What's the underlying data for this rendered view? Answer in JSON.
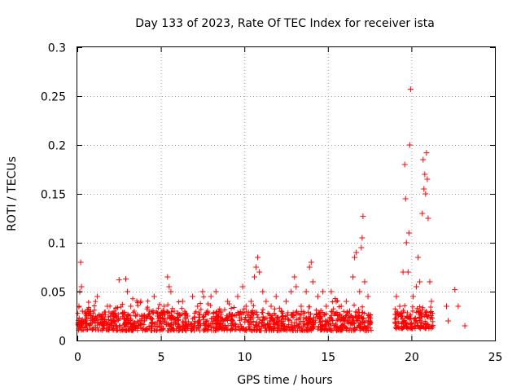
{
  "chart_data": {
    "type": "scatter",
    "title": "Day 133 of 2023, Rate Of TEC Index for receiver ista",
    "xlabel": "GPS time / hours",
    "ylabel": "ROTI / TECUs",
    "xlim": [
      0,
      25
    ],
    "ylim": [
      0,
      0.3
    ],
    "xticks": [
      0,
      5,
      10,
      15,
      20,
      25
    ],
    "yticks": [
      0,
      0.05,
      0.1,
      0.15,
      0.2,
      0.25,
      0.3
    ],
    "xtick_labels": [
      "0",
      "5",
      "10",
      "15",
      "20",
      "25"
    ],
    "ytick_labels": [
      "0",
      "0.05",
      "0.1",
      "0.15",
      "0.2",
      "0.25",
      "0.3"
    ],
    "grid": true,
    "marker": "+",
    "color": "#ff0000",
    "series": [
      {
        "name": "ROTI",
        "points": [
          [
            0.05,
            0.018
          ],
          [
            0.1,
            0.035
          ],
          [
            0.15,
            0.05
          ],
          [
            0.2,
            0.08
          ],
          [
            0.25,
            0.055
          ],
          [
            0.3,
            0.03
          ],
          [
            0.5,
            0.022
          ],
          [
            0.8,
            0.03
          ],
          [
            1.0,
            0.02
          ],
          [
            1.2,
            0.045
          ],
          [
            1.5,
            0.025
          ],
          [
            1.8,
            0.035
          ],
          [
            2.0,
            0.02
          ],
          [
            2.2,
            0.03
          ],
          [
            2.5,
            0.062
          ],
          [
            2.7,
            0.028
          ],
          [
            2.9,
            0.063
          ],
          [
            3.0,
            0.05
          ],
          [
            3.2,
            0.035
          ],
          [
            3.5,
            0.025
          ],
          [
            3.8,
            0.04
          ],
          [
            4.0,
            0.02
          ],
          [
            4.3,
            0.03
          ],
          [
            4.6,
            0.045
          ],
          [
            4.8,
            0.025
          ],
          [
            5.0,
            0.022
          ],
          [
            5.2,
            0.035
          ],
          [
            5.4,
            0.065
          ],
          [
            5.5,
            0.055
          ],
          [
            5.6,
            0.05
          ],
          [
            5.8,
            0.03
          ],
          [
            6.0,
            0.028
          ],
          [
            6.3,
            0.04
          ],
          [
            6.6,
            0.025
          ],
          [
            6.9,
            0.045
          ],
          [
            7.2,
            0.035
          ],
          [
            7.5,
            0.05
          ],
          [
            7.8,
            0.03
          ],
          [
            8.0,
            0.045
          ],
          [
            8.3,
            0.05
          ],
          [
            8.6,
            0.03
          ],
          [
            9.0,
            0.04
          ],
          [
            9.3,
            0.025
          ],
          [
            9.6,
            0.045
          ],
          [
            9.9,
            0.055
          ],
          [
            10.1,
            0.035
          ],
          [
            10.4,
            0.04
          ],
          [
            10.6,
            0.065
          ],
          [
            10.7,
            0.075
          ],
          [
            10.8,
            0.085
          ],
          [
            10.9,
            0.07
          ],
          [
            11.1,
            0.05
          ],
          [
            11.3,
            0.04
          ],
          [
            11.6,
            0.035
          ],
          [
            11.9,
            0.045
          ],
          [
            12.2,
            0.03
          ],
          [
            12.5,
            0.04
          ],
          [
            12.8,
            0.05
          ],
          [
            13.0,
            0.065
          ],
          [
            13.1,
            0.055
          ],
          [
            13.4,
            0.035
          ],
          [
            13.7,
            0.05
          ],
          [
            13.9,
            0.075
          ],
          [
            14.0,
            0.08
          ],
          [
            14.1,
            0.06
          ],
          [
            14.4,
            0.045
          ],
          [
            14.7,
            0.05
          ],
          [
            14.9,
            0.035
          ],
          [
            15.2,
            0.05
          ],
          [
            15.5,
            0.04
          ],
          [
            15.8,
            0.035
          ],
          [
            16.1,
            0.04
          ],
          [
            16.3,
            0.03
          ],
          [
            16.5,
            0.065
          ],
          [
            16.6,
            0.085
          ],
          [
            16.7,
            0.09
          ],
          [
            16.9,
            0.05
          ],
          [
            17.0,
            0.095
          ],
          [
            17.05,
            0.105
          ],
          [
            17.1,
            0.127
          ],
          [
            17.2,
            0.06
          ],
          [
            17.4,
            0.045
          ],
          [
            19.1,
            0.045
          ],
          [
            19.3,
            0.035
          ],
          [
            19.5,
            0.07
          ],
          [
            19.6,
            0.18
          ],
          [
            19.65,
            0.145
          ],
          [
            19.7,
            0.1
          ],
          [
            19.8,
            0.07
          ],
          [
            19.85,
            0.11
          ],
          [
            19.9,
            0.2
          ],
          [
            19.95,
            0.257
          ],
          [
            20.1,
            0.045
          ],
          [
            20.3,
            0.055
          ],
          [
            20.4,
            0.085
          ],
          [
            20.5,
            0.06
          ],
          [
            20.65,
            0.13
          ],
          [
            20.7,
            0.185
          ],
          [
            20.75,
            0.155
          ],
          [
            20.8,
            0.17
          ],
          [
            20.85,
            0.15
          ],
          [
            20.9,
            0.192
          ],
          [
            20.95,
            0.165
          ],
          [
            21.0,
            0.125
          ],
          [
            21.1,
            0.06
          ],
          [
            21.2,
            0.04
          ],
          [
            22.1,
            0.035
          ],
          [
            22.2,
            0.02
          ],
          [
            22.6,
            0.052
          ],
          [
            22.8,
            0.035
          ],
          [
            23.2,
            0.015
          ]
        ]
      }
    ],
    "bands": [
      {
        "x0": 0.0,
        "x1": 17.6,
        "ymin": 0.01,
        "ymax": 0.03
      },
      {
        "x0": 19.0,
        "x1": 21.3,
        "ymin": 0.012,
        "ymax": 0.03
      }
    ]
  }
}
